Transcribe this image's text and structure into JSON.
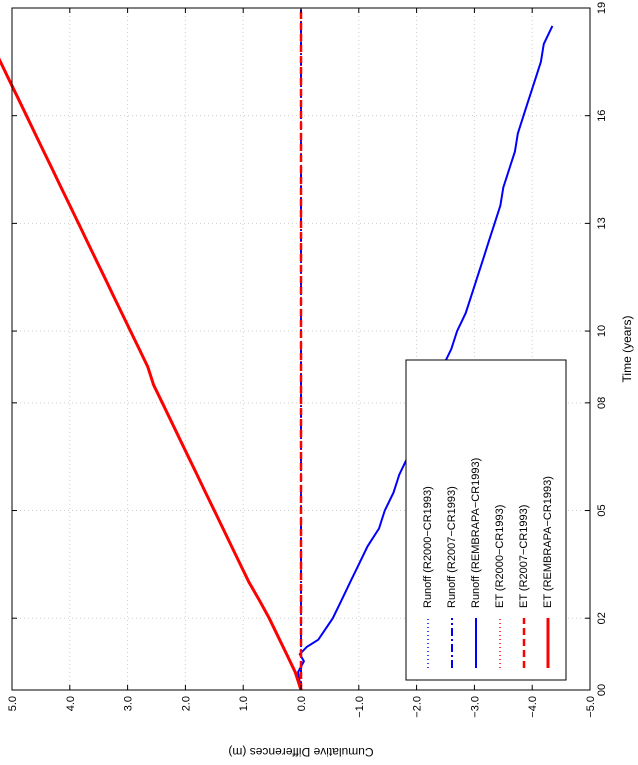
{
  "chart_data": {
    "type": "line",
    "orientation": "rotated-90-clockwise",
    "xlabel": "Time (years)",
    "ylabel": "Cumulative Differences (m)",
    "x_ticks": [
      {
        "value": 0,
        "label": "00"
      },
      {
        "value": 2,
        "label": "02"
      },
      {
        "value": 5,
        "label": "05"
      },
      {
        "value": 8,
        "label": "08"
      },
      {
        "value": 10,
        "label": "10"
      },
      {
        "value": 13,
        "label": "13"
      },
      {
        "value": 16,
        "label": "16"
      },
      {
        "value": 19,
        "label": "19"
      }
    ],
    "y_ticks": [
      {
        "value": 5,
        "label": "5.0"
      },
      {
        "value": 4,
        "label": "4.0"
      },
      {
        "value": 3,
        "label": "3.0"
      },
      {
        "value": 2,
        "label": "2.0"
      },
      {
        "value": 1,
        "label": "1.0"
      },
      {
        "value": 0,
        "label": "0.0"
      },
      {
        "value": -1,
        "label": "−1.0"
      },
      {
        "value": -2,
        "label": "−2.0"
      },
      {
        "value": -3,
        "label": "−3.0"
      },
      {
        "value": -4,
        "label": "−4.0"
      },
      {
        "value": -5,
        "label": "−5.0"
      }
    ],
    "xlim": [
      0,
      19
    ],
    "ylim": [
      -5,
      5
    ],
    "grid": true,
    "legend_position": "bottom-right",
    "series": [
      {
        "name": "Runoff (R2000−CR1993)",
        "color": "#0000ff",
        "style": "dotted",
        "x": [
          0,
          19
        ],
        "y": [
          0,
          0
        ]
      },
      {
        "name": "Runoff (R2007−CR1993)",
        "color": "#0000ff",
        "style": "dashdot",
        "x": [
          0,
          19
        ],
        "y": [
          0,
          0
        ]
      },
      {
        "name": "Runoff (REMBRAPA−CR1993)",
        "color": "#0000ff",
        "style": "solid",
        "x": [
          0,
          0.5,
          0.8,
          1.0,
          1.2,
          1.4,
          2.0,
          2.5,
          3.0,
          3.5,
          4.0,
          4.5,
          5.0,
          5.5,
          6.0,
          6.5,
          7.0,
          7.5,
          8.0,
          8.5,
          9.0,
          9.5,
          10.0,
          10.5,
          11.0,
          11.5,
          12.0,
          12.5,
          13.0,
          13.5,
          14.0,
          14.5,
          15.0,
          15.5,
          16.0,
          16.5,
          17.0,
          17.5,
          18.0,
          18.5
        ],
        "y": [
          0,
          0.05,
          -0.05,
          0.02,
          -0.1,
          -0.3,
          -0.55,
          -0.7,
          -0.85,
          -1.0,
          -1.15,
          -1.35,
          -1.45,
          -1.6,
          -1.7,
          -1.85,
          -2.0,
          -2.1,
          -2.2,
          -2.35,
          -2.45,
          -2.6,
          -2.7,
          -2.85,
          -2.95,
          -3.05,
          -3.15,
          -3.25,
          -3.35,
          -3.45,
          -3.5,
          -3.6,
          -3.7,
          -3.75,
          -3.85,
          -3.95,
          -4.05,
          -4.15,
          -4.2,
          -4.35
        ]
      },
      {
        "name": "ET (R2000−CR1993)",
        "color": "#ff0000",
        "style": "dotted",
        "x": [
          0,
          19
        ],
        "y": [
          0,
          0
        ]
      },
      {
        "name": "ET (R2007−CR1993)",
        "color": "#ff0000",
        "style": "dashed",
        "x": [
          0,
          19
        ],
        "y": [
          0,
          0
        ]
      },
      {
        "name": "ET (REMBRAPA−CR1993)",
        "color": "#ff0000",
        "style": "solid",
        "x": [
          0,
          0.5,
          1.0,
          1.5,
          2.0,
          2.5,
          3.0,
          3.5,
          4.0,
          4.5,
          5.0,
          5.5,
          6.0,
          6.5,
          7.0,
          7.5,
          8.0,
          8.5,
          9.0,
          9.5,
          10.0,
          10.5,
          11.0,
          11.5,
          12.0,
          12.5,
          13.0,
          13.5,
          14.0,
          14.5,
          15.0,
          15.5,
          16.0,
          16.5,
          17.0,
          17.5,
          18.0,
          18.5
        ],
        "y": [
          0,
          0.1,
          0.25,
          0.4,
          0.55,
          0.72,
          0.9,
          1.05,
          1.2,
          1.35,
          1.5,
          1.65,
          1.8,
          1.95,
          2.1,
          2.25,
          2.4,
          2.55,
          2.65,
          2.8,
          2.95,
          3.1,
          3.25,
          3.4,
          3.55,
          3.7,
          3.85,
          4.0,
          4.15,
          4.3,
          4.45,
          4.6,
          4.75,
          4.9,
          5.05,
          5.2,
          5.35,
          5.5
        ]
      }
    ]
  }
}
